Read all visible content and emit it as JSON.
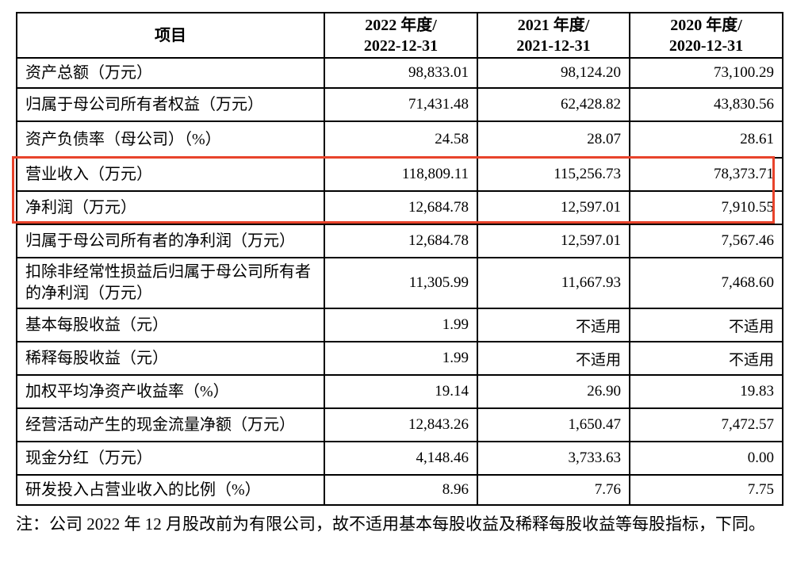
{
  "colors": {
    "highlight_box": "#e8432b",
    "table_border": "#000000",
    "background": "#ffffff",
    "text": "#000000"
  },
  "table": {
    "item_header": "项目",
    "year_columns": [
      {
        "line1": "2022 年度/",
        "line2": "2022-12-31"
      },
      {
        "line1": "2021 年度/",
        "line2": "2021-12-31"
      },
      {
        "line1": "2020 年度/",
        "line2": "2020-12-31"
      }
    ],
    "rows": [
      {
        "label": "资产总额（万元）",
        "values": [
          "98,833.01",
          "98,124.20",
          "73,100.29"
        ],
        "highlighted": false
      },
      {
        "label": "归属于母公司所有者权益（万元）",
        "values": [
          "71,431.48",
          "62,428.82",
          "43,830.56"
        ],
        "highlighted": false
      },
      {
        "label": "资产负债率（母公司）（%）",
        "values": [
          "24.58",
          "28.07",
          "28.61"
        ],
        "highlighted": false
      },
      {
        "label": "营业收入（万元）",
        "values": [
          "118,809.11",
          "115,256.73",
          "78,373.71"
        ],
        "highlighted": true
      },
      {
        "label": "净利润（万元）",
        "values": [
          "12,684.78",
          "12,597.01",
          "7,910.55"
        ],
        "highlighted": true
      },
      {
        "label": "归属于母公司所有者的净利润（万元）",
        "values": [
          "12,684.78",
          "12,597.01",
          "7,567.46"
        ],
        "highlighted": false
      },
      {
        "label": "扣除非经常性损益后归属于母公司所有者的净利润（万元）",
        "values": [
          "11,305.99",
          "11,667.93",
          "7,468.60"
        ],
        "highlighted": false
      },
      {
        "label": "基本每股收益（元）",
        "values": [
          "1.99",
          "不适用",
          "不适用"
        ],
        "highlighted": false
      },
      {
        "label": "稀释每股收益（元）",
        "values": [
          "1.99",
          "不适用",
          "不适用"
        ],
        "highlighted": false
      },
      {
        "label": "加权平均净资产收益率（%）",
        "values": [
          "19.14",
          "26.90",
          "19.83"
        ],
        "highlighted": false
      },
      {
        "label": "经营活动产生的现金流量净额（万元）",
        "values": [
          "12,843.26",
          "1,650.47",
          "7,472.57"
        ],
        "highlighted": false
      },
      {
        "label": "现金分红（万元）",
        "values": [
          "4,148.46",
          "3,733.63",
          "0.00"
        ],
        "highlighted": false
      },
      {
        "label": "研发投入占营业收入的比例（%）",
        "values": [
          "8.96",
          "7.76",
          "7.75"
        ],
        "highlighted": false
      }
    ]
  },
  "note": "注：公司 2022 年 12 月股改前为有限公司，故不适用基本每股收益及稀释每股收益等每股指标，下同。"
}
